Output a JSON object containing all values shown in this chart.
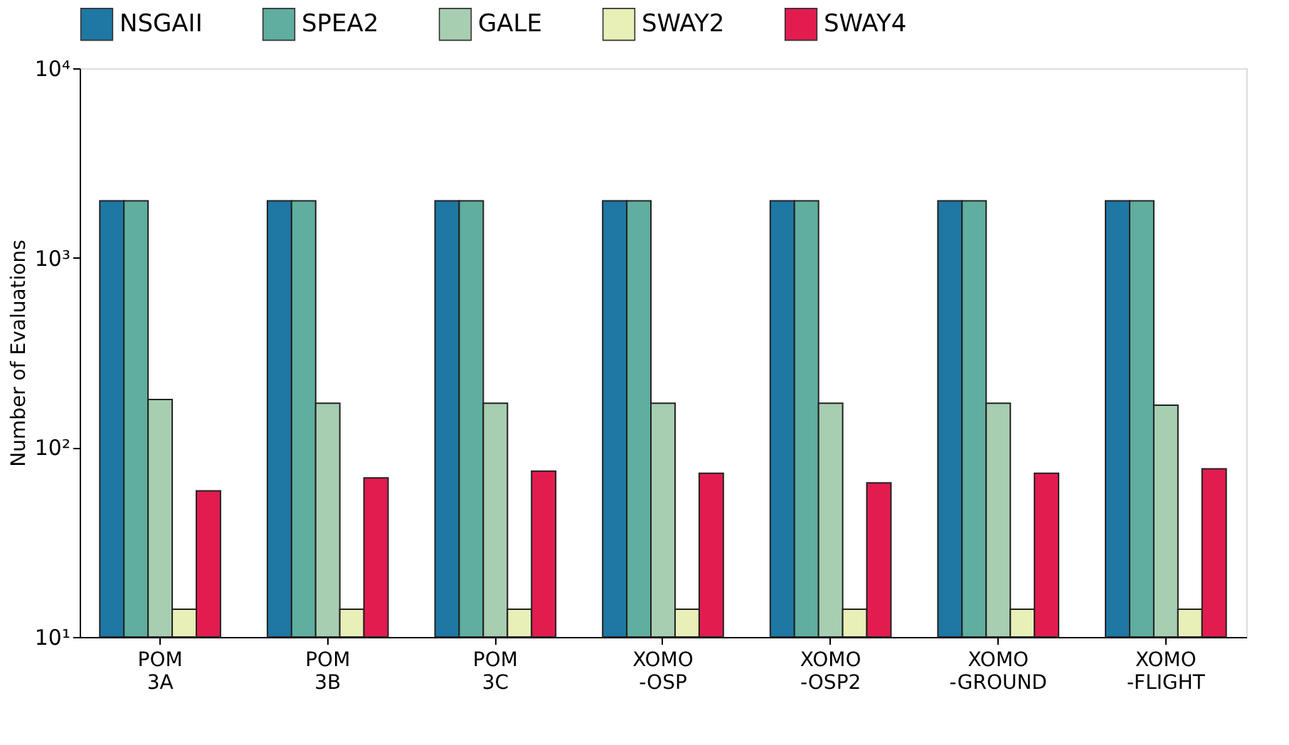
{
  "chart_data": {
    "type": "bar",
    "ylabel": "Number of Evaluations",
    "log": true,
    "grid": false,
    "legend": "top",
    "categories": [
      "POM\n3A",
      "POM\n3B",
      "POM\n3C",
      "XOMO\n-OSP",
      "XOMO\n-OSP2",
      "XOMO\n-GROUND",
      "XOMO\n-FLIGHT"
    ],
    "ylim": [
      10,
      10000
    ],
    "yticks": [
      {
        "value": 10,
        "label": "10¹"
      },
      {
        "value": 100,
        "label": "10²"
      },
      {
        "value": 1000,
        "label": "10³"
      },
      {
        "value": 10000,
        "label": "10⁴"
      }
    ],
    "series": [
      {
        "name": "NSGAII",
        "color": "#1f77a4",
        "values": [
          2000,
          2000,
          2000,
          2000,
          2000,
          2000,
          2000
        ]
      },
      {
        "name": "SPEA2",
        "color": "#5fae9f",
        "values": [
          2000,
          2000,
          2000,
          2000,
          2000,
          2000,
          2000
        ]
      },
      {
        "name": "GALE",
        "color": "#a8ceb2",
        "values": [
          179,
          171,
          171,
          171,
          171,
          171,
          167
        ]
      },
      {
        "name": "SWAY2",
        "color": "#e8f0b8",
        "values": [
          14,
          14,
          14,
          14,
          14,
          14,
          14
        ]
      },
      {
        "name": "SWAY4",
        "color": "#e31c50",
        "values": [
          59,
          69,
          75,
          73,
          65,
          73,
          77
        ]
      }
    ]
  }
}
